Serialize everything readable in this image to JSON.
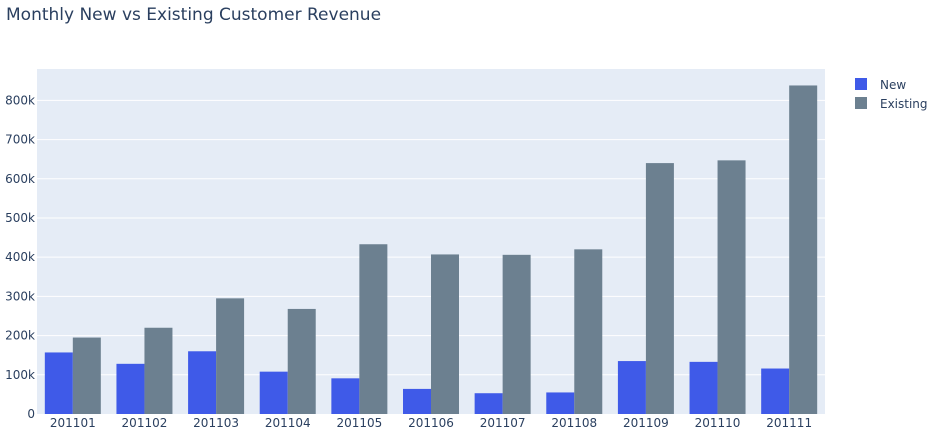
{
  "chart_data": {
    "type": "bar",
    "title": "Monthly New vs Existing Customer Revenue",
    "xlabel": "",
    "ylabel": "",
    "categories": [
      "201101",
      "201102",
      "201103",
      "201104",
      "201105",
      "201106",
      "201107",
      "201108",
      "201109",
      "201110",
      "201111"
    ],
    "series": [
      {
        "name": "New",
        "color": "#3f5ae8",
        "values": [
          157000,
          128000,
          160000,
          108000,
          91000,
          64000,
          53000,
          55000,
          135000,
          133000,
          116000
        ]
      },
      {
        "name": "Existing",
        "color": "#6c8090",
        "values": [
          195000,
          220000,
          295000,
          268000,
          433000,
          407000,
          406000,
          420000,
          640000,
          647000,
          838000
        ]
      }
    ],
    "ylim": [
      0,
      880000
    ],
    "yticks": [
      0,
      100000,
      200000,
      300000,
      400000,
      500000,
      600000,
      700000,
      800000
    ],
    "ytick_labels": [
      "0",
      "100k",
      "200k",
      "300k",
      "400k",
      "500k",
      "600k",
      "700k",
      "800k"
    ],
    "grid": true,
    "legend_position": "top-right",
    "plot_background": "#e5ecf6"
  }
}
